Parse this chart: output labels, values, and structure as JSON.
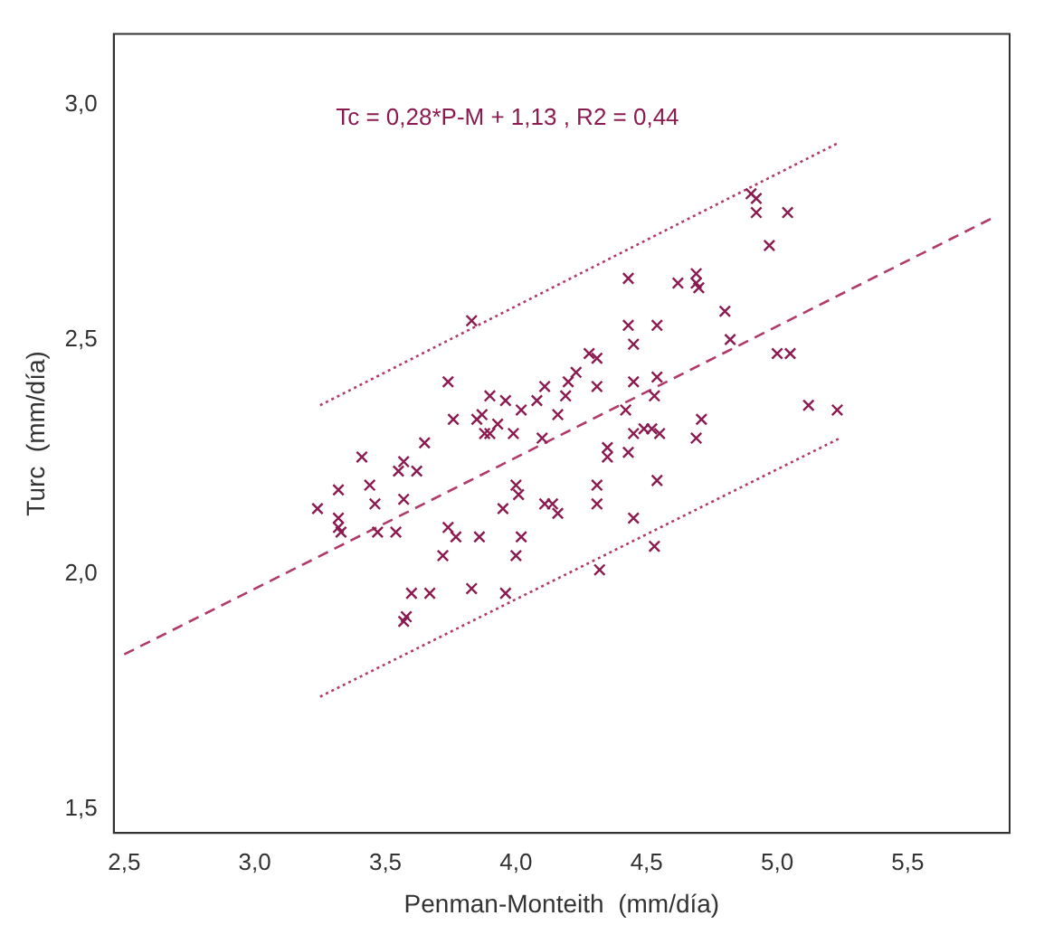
{
  "chart_data": {
    "type": "scatter",
    "xlabel": "Penman-Monteith  (mm/día)",
    "ylabel": "Turc  (mm/día)",
    "annotations": [
      "Tc = 0,28*P-M + 1,13 , R2 = 0,44"
    ],
    "xlim": [
      2.46,
      5.89
    ],
    "ylim": [
      1.45,
      3.15
    ],
    "xticks": [
      {
        "value": 2.5,
        "label": "2,5"
      },
      {
        "value": 3,
        "label": "3,0"
      },
      {
        "value": 3.5,
        "label": "3,5"
      },
      {
        "value": 4,
        "label": "4,0"
      },
      {
        "value": 4.5,
        "label": "4,5"
      },
      {
        "value": 5,
        "label": "5,0"
      },
      {
        "value": 5.5,
        "label": "5,5"
      }
    ],
    "yticks": [
      {
        "value": 1.5,
        "label": "1,5"
      },
      {
        "value": 2,
        "label": "2,0"
      },
      {
        "value": 2.5,
        "label": "2,5"
      },
      {
        "value": 3,
        "label": "3,0"
      }
    ],
    "grid": false,
    "legend": false,
    "marker": "cross",
    "series": [
      {
        "color": "#8b1a50",
        "x": [
          3.24,
          3.32,
          3.32,
          3.32,
          3.33,
          3.41,
          3.44,
          3.46,
          3.47,
          3.54,
          3.55,
          3.57,
          3.62,
          3.57,
          3.65,
          3.74,
          3.76,
          3.74,
          3.77,
          3.72,
          3.6,
          3.67,
          3.58,
          3.57,
          3.83,
          3.85,
          3.87,
          3.9,
          3.88,
          3.9,
          3.93,
          3.96,
          3.99,
          4.02,
          4.08,
          4.11,
          4.1,
          4.16,
          4.2,
          4.19,
          4.23,
          4.28,
          4.31,
          4.31,
          3.86,
          3.95,
          4.0,
          4.01,
          4.02,
          4.0,
          3.83,
          3.96,
          4.11,
          4.14,
          4.16,
          4.31,
          4.31,
          4.35,
          4.35,
          4.32,
          4.43,
          4.43,
          4.45,
          4.45,
          4.42,
          4.45,
          4.43,
          4.45,
          4.49,
          4.52,
          4.55,
          4.54,
          4.54,
          4.53,
          4.54,
          4.53,
          4.62,
          4.69,
          4.69,
          4.7,
          4.71,
          4.69,
          4.8,
          4.82,
          4.9,
          4.92,
          4.92,
          4.97,
          5.04,
          5.0,
          5.05,
          5.12,
          5.23
        ],
        "values": [
          2.14,
          2.18,
          2.12,
          2.1,
          2.09,
          2.25,
          2.19,
          2.15,
          2.09,
          2.09,
          2.22,
          2.24,
          2.22,
          2.16,
          2.28,
          2.41,
          2.33,
          2.1,
          2.08,
          2.04,
          1.96,
          1.96,
          1.91,
          1.9,
          2.54,
          2.33,
          2.34,
          2.38,
          2.3,
          2.3,
          2.32,
          2.37,
          2.3,
          2.35,
          2.37,
          2.4,
          2.29,
          2.34,
          2.41,
          2.38,
          2.43,
          2.47,
          2.46,
          2.4,
          2.08,
          2.14,
          2.19,
          2.17,
          2.08,
          2.04,
          1.97,
          1.96,
          2.15,
          2.15,
          2.13,
          2.19,
          2.15,
          2.27,
          2.25,
          2.01,
          2.63,
          2.53,
          2.49,
          2.41,
          2.35,
          2.3,
          2.26,
          2.12,
          2.31,
          2.31,
          2.3,
          2.53,
          2.42,
          2.38,
          2.2,
          2.06,
          2.62,
          2.64,
          2.62,
          2.61,
          2.33,
          2.29,
          2.56,
          2.5,
          2.81,
          2.8,
          2.77,
          2.7,
          2.77,
          2.47,
          2.47,
          2.36,
          2.35
        ]
      },
      {
        "type": "line",
        "color": "#b03a6a",
        "line_style": "dashed",
        "marker": "none",
        "x": [
          2.5,
          5.83
        ],
        "values": [
          1.83,
          2.76
        ]
      },
      {
        "type": "line",
        "color": "#b03a6a",
        "line_style": "dotted",
        "marker": "none",
        "x": [
          3.25,
          5.24
        ],
        "values": [
          2.36,
          2.92
        ]
      },
      {
        "type": "line",
        "color": "#b03a6a",
        "line_style": "dotted",
        "marker": "none",
        "x": [
          3.25,
          5.24
        ],
        "values": [
          1.74,
          2.29
        ]
      }
    ]
  }
}
